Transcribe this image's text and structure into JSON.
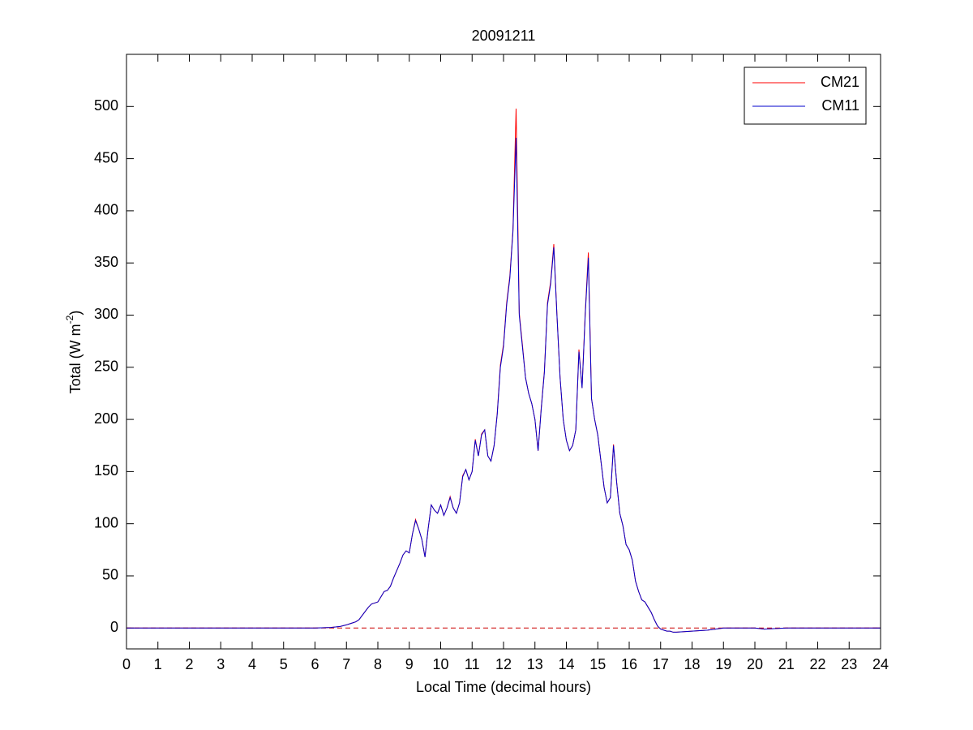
{
  "chart_data": {
    "type": "line",
    "title": "20091211",
    "xlabel": "Local Time (decimal hours)",
    "ylabel": "Total (W m",
    "ylabel_sup": "-2",
    "ylabel_end": ")",
    "x": [
      0,
      1,
      2,
      3,
      4,
      5,
      6,
      6.5,
      6.8,
      7,
      7.1,
      7.2,
      7.3,
      7.4,
      7.5,
      7.6,
      7.7,
      7.8,
      7.9,
      8,
      8.1,
      8.2,
      8.3,
      8.4,
      8.5,
      8.6,
      8.7,
      8.8,
      8.9,
      9,
      9.1,
      9.2,
      9.3,
      9.4,
      9.5,
      9.6,
      9.7,
      9.8,
      9.9,
      10,
      10.1,
      10.2,
      10.3,
      10.4,
      10.5,
      10.6,
      10.7,
      10.8,
      10.9,
      11,
      11.1,
      11.2,
      11.3,
      11.4,
      11.5,
      11.6,
      11.7,
      11.8,
      11.9,
      12,
      12.1,
      12.2,
      12.3,
      12.4,
      12.5,
      12.6,
      12.7,
      12.8,
      12.9,
      13,
      13.1,
      13.2,
      13.3,
      13.4,
      13.5,
      13.6,
      13.7,
      13.8,
      13.9,
      14,
      14.1,
      14.2,
      14.3,
      14.4,
      14.5,
      14.6,
      14.7,
      14.8,
      14.9,
      15,
      15.1,
      15.2,
      15.3,
      15.4,
      15.5,
      15.6,
      15.7,
      15.8,
      15.9,
      16,
      16.1,
      16.2,
      16.3,
      16.4,
      16.5,
      16.6,
      16.7,
      16.8,
      16.9,
      17,
      17.1,
      17.2,
      17.3,
      17.4,
      17.5,
      18,
      18.5,
      19,
      20,
      20.3,
      21,
      22,
      23,
      24
    ],
    "series": [
      {
        "name": "CM21",
        "color": "#ff0000",
        "values": [
          0,
          0,
          0,
          0,
          0,
          0,
          0,
          0.5,
          1.5,
          3,
          4,
          5,
          6,
          8,
          12,
          16,
          20,
          23,
          24,
          25,
          30,
          35,
          36,
          40,
          48,
          55,
          62,
          70,
          74,
          72,
          90,
          104,
          95,
          85,
          68,
          95,
          118,
          113,
          110,
          118,
          108,
          115,
          126,
          115,
          110,
          120,
          146,
          152,
          142,
          150,
          181,
          165,
          186,
          190,
          165,
          160,
          175,
          206,
          252,
          272,
          312,
          337,
          382,
          498,
          302,
          272,
          240,
          225,
          215,
          200,
          170,
          211,
          246,
          312,
          332,
          368,
          300,
          240,
          200,
          180,
          170,
          175,
          190,
          267,
          230,
          302,
          360,
          220,
          200,
          185,
          160,
          135,
          120,
          125,
          176,
          140,
          110,
          98,
          80,
          75,
          65,
          45,
          35,
          27,
          25,
          20,
          15,
          8,
          2,
          -1,
          -2,
          -3,
          -3,
          -4,
          -4,
          -3,
          -2,
          0,
          0,
          -1,
          0,
          0,
          0,
          0
        ]
      },
      {
        "name": "CM11",
        "color": "#0000cc",
        "values": [
          0,
          0,
          0,
          0,
          0,
          0,
          0,
          0.5,
          1.5,
          3,
          4,
          5,
          6,
          8,
          12,
          16,
          20,
          23,
          24,
          25,
          30,
          35,
          36,
          40,
          48,
          55,
          62,
          70,
          74,
          72,
          90,
          103,
          95,
          85,
          68,
          95,
          118,
          113,
          110,
          118,
          108,
          115,
          125,
          115,
          110,
          120,
          145,
          152,
          142,
          150,
          180,
          165,
          185,
          190,
          165,
          160,
          175,
          205,
          250,
          270,
          310,
          335,
          380,
          470,
          300,
          270,
          240,
          225,
          215,
          200,
          170,
          210,
          245,
          310,
          330,
          365,
          300,
          240,
          200,
          180,
          170,
          175,
          190,
          265,
          230,
          300,
          355,
          220,
          200,
          185,
          160,
          135,
          120,
          125,
          175,
          140,
          110,
          98,
          80,
          75,
          65,
          45,
          35,
          27,
          25,
          20,
          15,
          8,
          2,
          -1,
          -2,
          -3,
          -3,
          -4,
          -4,
          -3,
          -2,
          0,
          0,
          -1,
          0,
          0,
          0,
          0
        ]
      }
    ],
    "reference_line": {
      "value": 0,
      "color": "#cc0000",
      "dashed": true
    },
    "xlim": [
      0,
      24
    ],
    "xticks": [
      0,
      1,
      2,
      3,
      4,
      5,
      6,
      7,
      8,
      9,
      10,
      11,
      12,
      13,
      14,
      15,
      16,
      17,
      18,
      19,
      20,
      21,
      22,
      23,
      24
    ],
    "ylim": [
      -20,
      550
    ],
    "yticks": [
      0,
      50,
      100,
      150,
      200,
      250,
      300,
      350,
      400,
      450,
      500
    ],
    "grid": false,
    "legend": "northeast"
  }
}
